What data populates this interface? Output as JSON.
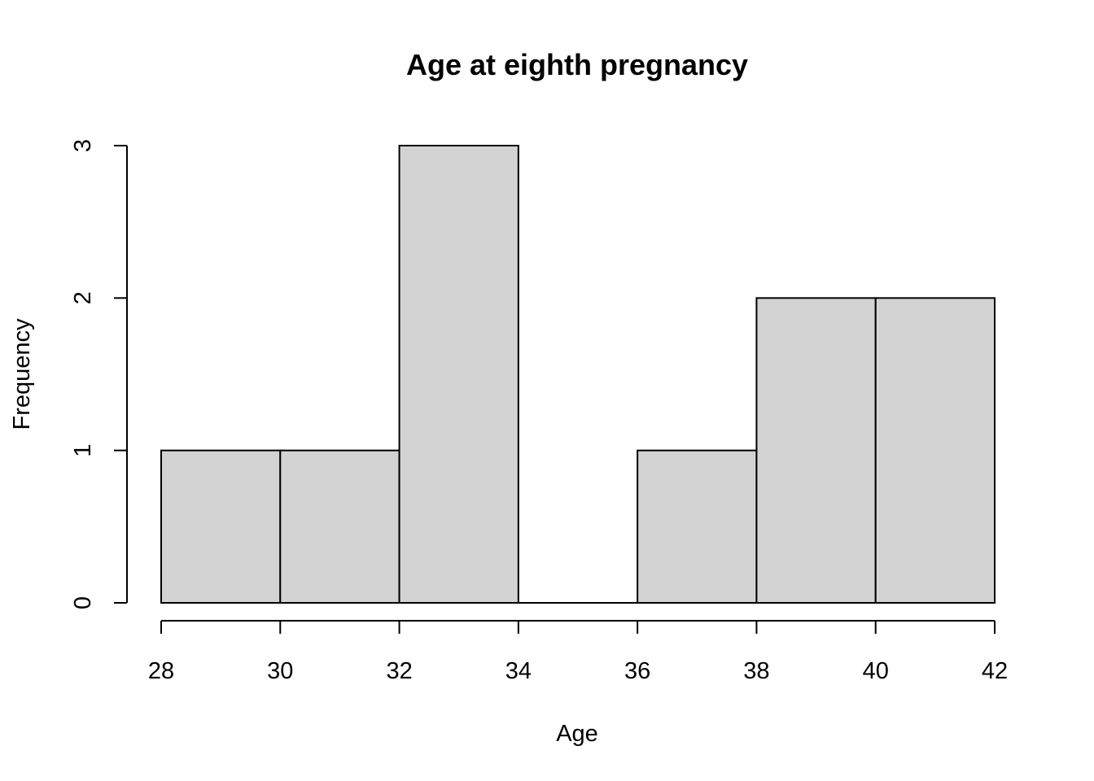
{
  "chart_data": {
    "type": "bar",
    "title": "Age at eighth pregnancy",
    "xlabel": "Age",
    "ylabel": "Frequency",
    "bins": [
      {
        "from": 28,
        "to": 30,
        "count": 1
      },
      {
        "from": 30,
        "to": 32,
        "count": 1
      },
      {
        "from": 32,
        "to": 34,
        "count": 3
      },
      {
        "from": 34,
        "to": 36,
        "count": 0
      },
      {
        "from": 36,
        "to": 38,
        "count": 1
      },
      {
        "from": 38,
        "to": 40,
        "count": 2
      },
      {
        "from": 40,
        "to": 42,
        "count": 2
      }
    ],
    "xticks": [
      28,
      30,
      32,
      34,
      36,
      38,
      40,
      42
    ],
    "yticks": [
      0,
      1,
      2,
      3
    ],
    "xlim": [
      28,
      42
    ],
    "ylim": [
      0,
      3
    ],
    "grid": false,
    "bar_color": "#d3d3d3",
    "edge_color": "#000000"
  }
}
